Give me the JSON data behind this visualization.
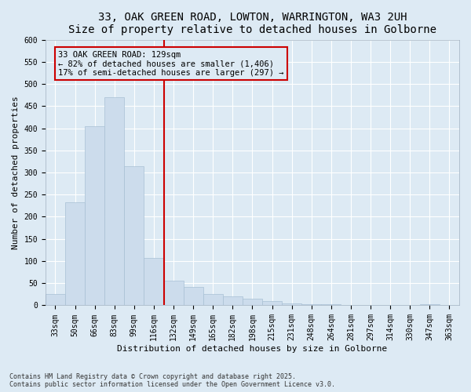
{
  "title_line1": "33, OAK GREEN ROAD, LOWTON, WARRINGTON, WA3 2UH",
  "title_line2": "Size of property relative to detached houses in Golborne",
  "xlabel": "Distribution of detached houses by size in Golborne",
  "ylabel": "Number of detached properties",
  "bar_color": "#ccdcec",
  "bar_edgecolor": "#a8c0d4",
  "background_color": "#ddeaf4",
  "grid_color": "#ffffff",
  "redline_color": "#cc0000",
  "annotation_text": "33 OAK GREEN ROAD: 129sqm\n← 82% of detached houses are smaller (1,406)\n17% of semi-detached houses are larger (297) →",
  "categories": [
    "33sqm",
    "50sqm",
    "66sqm",
    "83sqm",
    "99sqm",
    "116sqm",
    "132sqm",
    "149sqm",
    "165sqm",
    "182sqm",
    "198sqm",
    "215sqm",
    "231sqm",
    "248sqm",
    "264sqm",
    "281sqm",
    "297sqm",
    "314sqm",
    "330sqm",
    "347sqm",
    "363sqm"
  ],
  "values": [
    25,
    232,
    405,
    470,
    315,
    107,
    55,
    42,
    25,
    20,
    15,
    10,
    5,
    3,
    2,
    1,
    1,
    1,
    1,
    3,
    1
  ],
  "ylim": [
    0,
    600
  ],
  "yticks": [
    0,
    50,
    100,
    150,
    200,
    250,
    300,
    350,
    400,
    450,
    500,
    550,
    600
  ],
  "footnote": "Contains HM Land Registry data © Crown copyright and database right 2025.\nContains public sector information licensed under the Open Government Licence v3.0.",
  "title_fontsize": 10,
  "axis_fontsize": 8,
  "tick_fontsize": 7,
  "annot_fontsize": 7.5,
  "footnote_fontsize": 6
}
